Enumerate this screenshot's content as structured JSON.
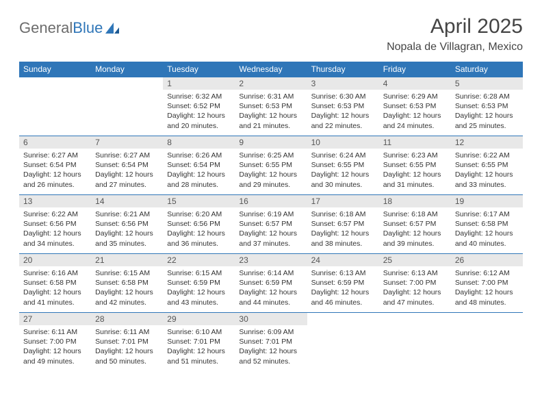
{
  "logo": {
    "brand_a": "General",
    "brand_b": "Blue"
  },
  "header": {
    "month_title": "April 2025",
    "location": "Nopala de Villagran, Mexico"
  },
  "colors": {
    "header_bg": "#2f76b8",
    "header_text": "#ffffff",
    "daynum_bg": "#e8e8e8",
    "row_border": "#2f76b8",
    "body_text": "#333333",
    "title_text": "#444444",
    "logo_gray": "#6c6c6c"
  },
  "daynames": [
    "Sunday",
    "Monday",
    "Tuesday",
    "Wednesday",
    "Thursday",
    "Friday",
    "Saturday"
  ],
  "weeks": [
    [
      null,
      null,
      {
        "n": "1",
        "sunrise": "6:32 AM",
        "sunset": "6:52 PM",
        "day_a": "Daylight: 12 hours",
        "day_b": "and 20 minutes."
      },
      {
        "n": "2",
        "sunrise": "6:31 AM",
        "sunset": "6:53 PM",
        "day_a": "Daylight: 12 hours",
        "day_b": "and 21 minutes."
      },
      {
        "n": "3",
        "sunrise": "6:30 AM",
        "sunset": "6:53 PM",
        "day_a": "Daylight: 12 hours",
        "day_b": "and 22 minutes."
      },
      {
        "n": "4",
        "sunrise": "6:29 AM",
        "sunset": "6:53 PM",
        "day_a": "Daylight: 12 hours",
        "day_b": "and 24 minutes."
      },
      {
        "n": "5",
        "sunrise": "6:28 AM",
        "sunset": "6:53 PM",
        "day_a": "Daylight: 12 hours",
        "day_b": "and 25 minutes."
      }
    ],
    [
      {
        "n": "6",
        "sunrise": "6:27 AM",
        "sunset": "6:54 PM",
        "day_a": "Daylight: 12 hours",
        "day_b": "and 26 minutes."
      },
      {
        "n": "7",
        "sunrise": "6:27 AM",
        "sunset": "6:54 PM",
        "day_a": "Daylight: 12 hours",
        "day_b": "and 27 minutes."
      },
      {
        "n": "8",
        "sunrise": "6:26 AM",
        "sunset": "6:54 PM",
        "day_a": "Daylight: 12 hours",
        "day_b": "and 28 minutes."
      },
      {
        "n": "9",
        "sunrise": "6:25 AM",
        "sunset": "6:55 PM",
        "day_a": "Daylight: 12 hours",
        "day_b": "and 29 minutes."
      },
      {
        "n": "10",
        "sunrise": "6:24 AM",
        "sunset": "6:55 PM",
        "day_a": "Daylight: 12 hours",
        "day_b": "and 30 minutes."
      },
      {
        "n": "11",
        "sunrise": "6:23 AM",
        "sunset": "6:55 PM",
        "day_a": "Daylight: 12 hours",
        "day_b": "and 31 minutes."
      },
      {
        "n": "12",
        "sunrise": "6:22 AM",
        "sunset": "6:55 PM",
        "day_a": "Daylight: 12 hours",
        "day_b": "and 33 minutes."
      }
    ],
    [
      {
        "n": "13",
        "sunrise": "6:22 AM",
        "sunset": "6:56 PM",
        "day_a": "Daylight: 12 hours",
        "day_b": "and 34 minutes."
      },
      {
        "n": "14",
        "sunrise": "6:21 AM",
        "sunset": "6:56 PM",
        "day_a": "Daylight: 12 hours",
        "day_b": "and 35 minutes."
      },
      {
        "n": "15",
        "sunrise": "6:20 AM",
        "sunset": "6:56 PM",
        "day_a": "Daylight: 12 hours",
        "day_b": "and 36 minutes."
      },
      {
        "n": "16",
        "sunrise": "6:19 AM",
        "sunset": "6:57 PM",
        "day_a": "Daylight: 12 hours",
        "day_b": "and 37 minutes."
      },
      {
        "n": "17",
        "sunrise": "6:18 AM",
        "sunset": "6:57 PM",
        "day_a": "Daylight: 12 hours",
        "day_b": "and 38 minutes."
      },
      {
        "n": "18",
        "sunrise": "6:18 AM",
        "sunset": "6:57 PM",
        "day_a": "Daylight: 12 hours",
        "day_b": "and 39 minutes."
      },
      {
        "n": "19",
        "sunrise": "6:17 AM",
        "sunset": "6:58 PM",
        "day_a": "Daylight: 12 hours",
        "day_b": "and 40 minutes."
      }
    ],
    [
      {
        "n": "20",
        "sunrise": "6:16 AM",
        "sunset": "6:58 PM",
        "day_a": "Daylight: 12 hours",
        "day_b": "and 41 minutes."
      },
      {
        "n": "21",
        "sunrise": "6:15 AM",
        "sunset": "6:58 PM",
        "day_a": "Daylight: 12 hours",
        "day_b": "and 42 minutes."
      },
      {
        "n": "22",
        "sunrise": "6:15 AM",
        "sunset": "6:59 PM",
        "day_a": "Daylight: 12 hours",
        "day_b": "and 43 minutes."
      },
      {
        "n": "23",
        "sunrise": "6:14 AM",
        "sunset": "6:59 PM",
        "day_a": "Daylight: 12 hours",
        "day_b": "and 44 minutes."
      },
      {
        "n": "24",
        "sunrise": "6:13 AM",
        "sunset": "6:59 PM",
        "day_a": "Daylight: 12 hours",
        "day_b": "and 46 minutes."
      },
      {
        "n": "25",
        "sunrise": "6:13 AM",
        "sunset": "7:00 PM",
        "day_a": "Daylight: 12 hours",
        "day_b": "and 47 minutes."
      },
      {
        "n": "26",
        "sunrise": "6:12 AM",
        "sunset": "7:00 PM",
        "day_a": "Daylight: 12 hours",
        "day_b": "and 48 minutes."
      }
    ],
    [
      {
        "n": "27",
        "sunrise": "6:11 AM",
        "sunset": "7:00 PM",
        "day_a": "Daylight: 12 hours",
        "day_b": "and 49 minutes."
      },
      {
        "n": "28",
        "sunrise": "6:11 AM",
        "sunset": "7:01 PM",
        "day_a": "Daylight: 12 hours",
        "day_b": "and 50 minutes."
      },
      {
        "n": "29",
        "sunrise": "6:10 AM",
        "sunset": "7:01 PM",
        "day_a": "Daylight: 12 hours",
        "day_b": "and 51 minutes."
      },
      {
        "n": "30",
        "sunrise": "6:09 AM",
        "sunset": "7:01 PM",
        "day_a": "Daylight: 12 hours",
        "day_b": "and 52 minutes."
      },
      null,
      null,
      null
    ]
  ],
  "labels": {
    "sunrise_prefix": "Sunrise: ",
    "sunset_prefix": "Sunset: "
  }
}
